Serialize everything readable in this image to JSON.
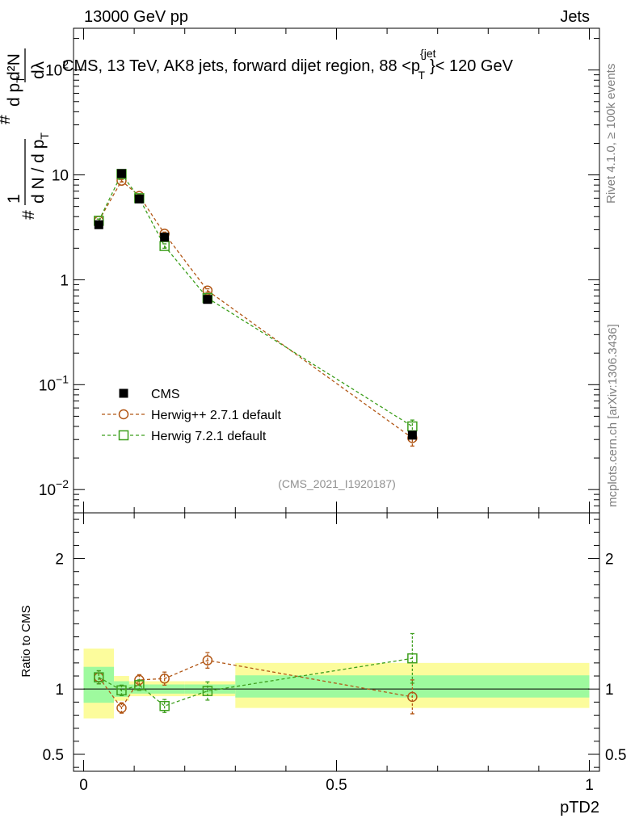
{
  "header": {
    "energy_label": "13000 GeV pp",
    "category_label": "Jets",
    "plot_title_prefix": "CMS, 13 TeV, AK8 jets, forward dijet region, 88 <p",
    "plot_title_sup": "{jet",
    "plot_title_sub": "T",
    "plot_title_suffix": "}< 120 GeV",
    "rivet_label": "Rivet 4.1.0, ≥ 100k events",
    "mcplots_label": "mcplots.cern.ch [arXiv:1306.3436]",
    "analysis_label": "(CMS_2021_I1920187)"
  },
  "chart_data": {
    "type": "line",
    "title": "CMS, 13 TeV, AK8 jets, forward dijet region, 88 <p_T^{jet}< 120 GeV",
    "xlabel": "pTD2",
    "ylabel": "# 1 / d N / d p_T # d p_T d^2N / d λ",
    "ylabel_parts": {
      "hash": "#",
      "one": "1",
      "dn": "d N / d p",
      "dn_sub": "T",
      "hash2": "#",
      "dp": "d p",
      "dp_sub": "T",
      "d2n": "d²N",
      "dlambda": "dλ"
    },
    "ratio_ylabel": "Ratio to CMS",
    "xlim": [
      -0.02,
      1.02
    ],
    "ylim": [
      0.006,
      250
    ],
    "yscale": "log",
    "ratio_ylim": [
      0.37,
      2.35
    ],
    "x_ticks": [
      {
        "v": 0,
        "label": "0"
      },
      {
        "v": 0.5,
        "label": "0.5"
      },
      {
        "v": 1,
        "label": "1"
      }
    ],
    "y_ticks": [
      {
        "v": 0.01,
        "base": "10",
        "exp": "−2"
      },
      {
        "v": 0.1,
        "base": "10",
        "exp": "−1"
      },
      {
        "v": 1,
        "base": "1",
        "exp": ""
      },
      {
        "v": 10,
        "base": "10",
        "exp": ""
      },
      {
        "v": 100,
        "base": "10",
        "exp": "2"
      }
    ],
    "ratio_ticks": [
      {
        "v": 0.5,
        "label": "0.5"
      },
      {
        "v": 1,
        "label": "1"
      },
      {
        "v": 2,
        "label": "2"
      }
    ],
    "bins": [
      0,
      0.06,
      0.09,
      0.13,
      0.2,
      0.3,
      1.0
    ],
    "series": [
      {
        "name": "CMS",
        "color": "#000000",
        "marker": "filled-square",
        "x": [
          0.03,
          0.075,
          0.11,
          0.16,
          0.245,
          0.65
        ],
        "y": [
          3.35,
          10.3,
          5.9,
          2.55,
          0.65,
          0.033
        ],
        "ratio": [
          1,
          1,
          1,
          1,
          1,
          1
        ],
        "ratio_stat_band": [
          [
            0.895,
            1.17
          ],
          [
            0.94,
            1.06
          ],
          [
            0.965,
            1.035
          ],
          [
            0.965,
            1.035
          ],
          [
            0.965,
            1.035
          ],
          [
            0.935,
            1.105
          ]
        ],
        "ratio_total_band": [
          [
            0.775,
            1.31
          ],
          [
            0.91,
            1.1
          ],
          [
            0.945,
            1.06
          ],
          [
            0.945,
            1.06
          ],
          [
            0.945,
            1.06
          ],
          [
            0.855,
            1.2
          ]
        ]
      },
      {
        "name": "Herwig++ 2.7.1 default",
        "color": "#b25716",
        "marker": "open-circle",
        "x": [
          0.03,
          0.075,
          0.11,
          0.16,
          0.245,
          0.65
        ],
        "y": [
          3.65,
          8.8,
          6.3,
          2.75,
          0.79,
          0.031
        ],
        "yerr": [
          0.15,
          0.25,
          0.2,
          0.1,
          0.03,
          0.005
        ],
        "ratio": [
          1.09,
          0.855,
          1.07,
          1.08,
          1.22,
          0.94
        ],
        "ratio_err": [
          0.05,
          0.04,
          0.04,
          0.05,
          0.06,
          0.13
        ]
      },
      {
        "name": "Herwig 7.2.1 default",
        "color": "#3e9f1e",
        "marker": "open-square",
        "x": [
          0.03,
          0.075,
          0.11,
          0.16,
          0.245,
          0.65
        ],
        "y": [
          3.65,
          10.2,
          6.0,
          2.1,
          0.67,
          0.04
        ],
        "yerr": [
          0.15,
          0.3,
          0.2,
          0.1,
          0.03,
          0.006
        ],
        "ratio": [
          1.09,
          0.99,
          1.03,
          0.87,
          0.985,
          1.235
        ],
        "ratio_err": [
          0.05,
          0.04,
          0.04,
          0.05,
          0.07,
          0.19
        ]
      }
    ],
    "legend_position": "lower-left",
    "colors": {
      "stat_band": "#9efa9e",
      "total_band": "#fcfc9c",
      "watermark": "#909090"
    }
  }
}
